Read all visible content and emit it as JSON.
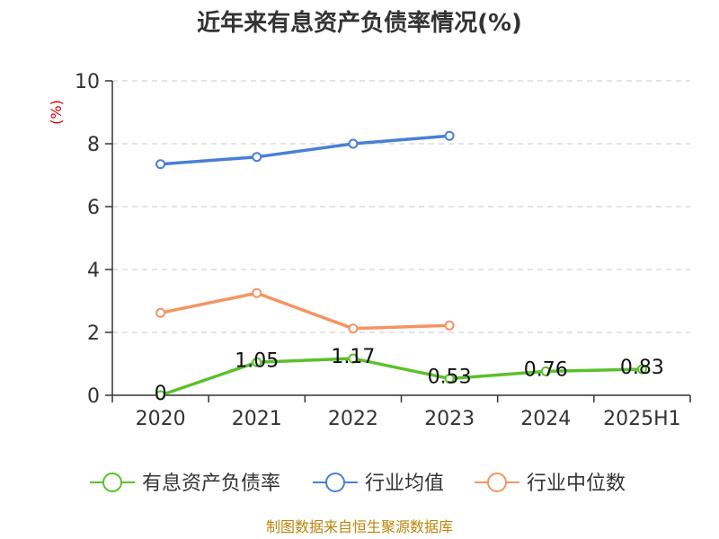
{
  "chart_data": {
    "type": "line",
    "title": "近年来有息资产负债率情况(%)",
    "y_unit_label": "(%)",
    "categories": [
      "2020",
      "2021",
      "2022",
      "2023",
      "2024",
      "2025H1"
    ],
    "ylim": [
      0,
      10
    ],
    "y_ticks": [
      0,
      2,
      4,
      6,
      8,
      10
    ],
    "grid": true,
    "legend_position": "bottom",
    "series": [
      {
        "name": "有息资产负债率",
        "color": "#5ac12d",
        "values": [
          0,
          1.05,
          1.17,
          0.53,
          0.76,
          0.83
        ],
        "labels": [
          "0",
          "1.05",
          "1.17",
          "0.53",
          "0.76",
          "0.83"
        ]
      },
      {
        "name": "行业均值",
        "color": "#4a7fd6",
        "values": [
          7.35,
          7.58,
          8.0,
          8.25,
          null,
          null
        ]
      },
      {
        "name": "行业中位数",
        "color": "#f59462",
        "values": [
          2.62,
          3.25,
          2.12,
          2.22,
          null,
          null
        ]
      }
    ]
  },
  "source": "制图数据来自恒生聚源数据库"
}
